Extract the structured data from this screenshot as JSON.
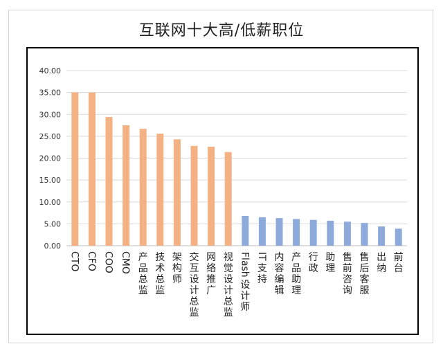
{
  "chart_data": {
    "type": "bar",
    "title": "互联网十大高/低薪职位",
    "xlabel": "",
    "ylabel": "",
    "ylim": [
      0,
      40
    ],
    "yticks": [
      "0.00",
      "5.00",
      "10.00",
      "15.00",
      "20.00",
      "25.00",
      "30.00",
      "35.00",
      "40.00"
    ],
    "grid": true,
    "categories": [
      "CTO",
      "CFO",
      "COO",
      "CMO",
      "产品总监",
      "技术总监",
      "架构师",
      "交互设计总监",
      "网络推广",
      "视觉设计总监",
      "Flash设计师",
      "IT支持",
      "内容编辑",
      "产品助理",
      "行政",
      "助理",
      "售前咨询",
      "售后客服",
      "出纳",
      "前台"
    ],
    "values": [
      35.0,
      35.0,
      29.4,
      27.5,
      26.7,
      25.6,
      24.3,
      22.8,
      22.6,
      21.4,
      6.8,
      6.5,
      6.3,
      6.1,
      5.9,
      5.7,
      5.5,
      5.2,
      4.4,
      3.9
    ],
    "colors": {
      "high": "#f4b183",
      "low": "#8eaadb"
    },
    "high_count": 10
  }
}
